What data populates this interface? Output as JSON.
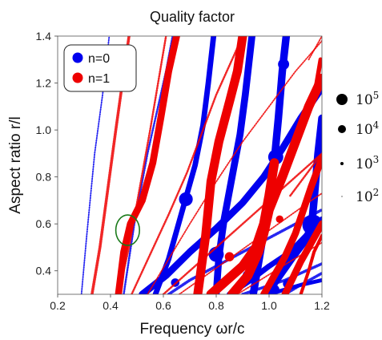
{
  "chart_data": {
    "type": "scatter",
    "title": "Quality factor",
    "xlabel": "Frequency ωr/c",
    "ylabel": "Aspect ratio r/l",
    "xlim": [
      0.2,
      1.2
    ],
    "ylim": [
      0.3,
      1.4
    ],
    "xticks": [
      "0.2",
      "0.4",
      "0.6",
      "0.8",
      "1.0",
      "1.2"
    ],
    "xtick_values": [
      0.2,
      0.4,
      0.6,
      0.8,
      1.0,
      1.2
    ],
    "yticks": [
      "0.4",
      "0.6",
      "0.8",
      "1.0",
      "1.2",
      "1.4"
    ],
    "ytick_values": [
      0.4,
      0.6,
      0.8,
      1.0,
      1.2,
      1.4
    ],
    "grid": false,
    "legend": {
      "placement": "top-left",
      "entries": [
        {
          "label": "n=0",
          "color": "#0000ee"
        },
        {
          "label": "n=1",
          "color": "#ee0000"
        }
      ]
    },
    "size_legend": {
      "placement": "right",
      "entries": [
        {
          "base": "10",
          "exp": "5",
          "q": 100000
        },
        {
          "base": "10",
          "exp": "4",
          "q": 10000
        },
        {
          "base": "10",
          "exp": "3",
          "q": 1000
        },
        {
          "base": "10",
          "exp": "2",
          "q": 100
        }
      ]
    },
    "annotation": {
      "type": "ellipse",
      "x": 0.465,
      "y": 0.573,
      "rx": 0.045,
      "ry": 0.065,
      "color": "#1a7a1a"
    },
    "series": [
      {
        "name": "n=0",
        "color": "#0000ee",
        "branches": [
          {
            "q": 200,
            "points": [
              [
                0.29,
                0.3
              ],
              [
                0.31,
                0.55
              ],
              [
                0.34,
                0.9
              ],
              [
                0.37,
                1.15
              ],
              [
                0.395,
                1.4
              ]
            ]
          },
          {
            "q": 300,
            "points": [
              [
                0.45,
                0.3
              ],
              [
                0.49,
                0.6
              ],
              [
                0.54,
                0.9
              ],
              [
                0.58,
                1.1
              ],
              [
                0.61,
                1.25
              ],
              [
                0.635,
                1.4
              ]
            ]
          },
          {
            "q": 1500,
            "points": [
              [
                0.57,
                0.3
              ],
              [
                0.62,
                0.45
              ],
              [
                0.68,
                0.69
              ],
              [
                0.72,
                0.85
              ],
              [
                0.75,
                1.02
              ],
              [
                0.77,
                1.2
              ],
              [
                0.79,
                1.4
              ]
            ]
          },
          {
            "q": 2500,
            "points": [
              [
                0.52,
                0.3
              ],
              [
                0.61,
                0.38
              ],
              [
                0.7,
                0.48
              ],
              [
                0.8,
                0.58
              ],
              [
                0.9,
                0.69
              ],
              [
                0.98,
                0.8
              ],
              [
                1.05,
                0.92
              ],
              [
                1.12,
                1.05
              ],
              [
                1.2,
                1.18
              ]
            ]
          },
          {
            "q": 2500,
            "points": [
              [
                0.8,
                0.3
              ],
              [
                0.81,
                0.46
              ],
              [
                0.83,
                0.62
              ],
              [
                0.86,
                0.8
              ],
              [
                0.89,
                0.98
              ],
              [
                0.91,
                1.15
              ],
              [
                0.935,
                1.4
              ]
            ]
          },
          {
            "q": 3000,
            "points": [
              [
                0.94,
                0.3
              ],
              [
                0.97,
                0.5
              ],
              [
                1.0,
                0.72
              ],
              [
                1.02,
                0.87
              ],
              [
                1.035,
                1.05
              ],
              [
                1.05,
                1.25
              ],
              [
                1.065,
                1.4
              ]
            ]
          },
          {
            "q": 1500,
            "points": [
              [
                0.85,
                0.3
              ],
              [
                0.93,
                0.36
              ],
              [
                1.0,
                0.42
              ],
              [
                1.08,
                0.48
              ],
              [
                1.14,
                0.55
              ],
              [
                1.2,
                0.62
              ]
            ]
          },
          {
            "q": 3000,
            "points": [
              [
                0.99,
                0.3
              ],
              [
                1.04,
                0.38
              ],
              [
                1.09,
                0.46
              ],
              [
                1.13,
                0.52
              ],
              [
                1.16,
                0.58
              ],
              [
                1.17,
                0.7
              ],
              [
                1.185,
                0.9
              ],
              [
                1.2,
                1.05
              ]
            ]
          },
          {
            "q": 500,
            "points": [
              [
                0.62,
                0.3
              ],
              [
                0.7,
                0.36
              ],
              [
                0.8,
                0.42
              ],
              [
                0.9,
                0.48
              ],
              [
                1.0,
                0.54
              ],
              [
                1.1,
                0.6
              ],
              [
                1.2,
                0.66
              ]
            ]
          },
          {
            "q": 500,
            "points": [
              [
                0.9,
                0.3
              ],
              [
                0.98,
                0.33
              ],
              [
                1.06,
                0.36
              ],
              [
                1.14,
                0.4
              ],
              [
                1.2,
                0.43
              ]
            ]
          },
          {
            "q": 500,
            "points": [
              [
                1.06,
                0.3
              ],
              [
                1.12,
                0.34
              ],
              [
                1.2,
                0.39
              ]
            ]
          },
          {
            "q": 800,
            "points": [
              [
                1.0,
                0.3
              ],
              [
                1.06,
                0.32
              ],
              [
                1.12,
                0.34
              ],
              [
                1.2,
                0.36
              ]
            ]
          }
        ],
        "points": [
          {
            "x": 0.685,
            "y": 0.705,
            "q": 15000
          },
          {
            "x": 0.8,
            "y": 0.47,
            "q": 20000
          },
          {
            "x": 1.025,
            "y": 0.885,
            "q": 20000
          },
          {
            "x": 1.165,
            "y": 0.595,
            "q": 60000
          },
          {
            "x": 1.055,
            "y": 1.28,
            "q": 8000
          },
          {
            "x": 0.92,
            "y": 0.38,
            "q": 7000
          },
          {
            "x": 1.02,
            "y": 0.32,
            "q": 6000
          },
          {
            "x": 1.07,
            "y": 0.345,
            "q": 5000
          },
          {
            "x": 0.645,
            "y": 0.35,
            "q": 4000
          }
        ]
      },
      {
        "name": "n=1",
        "color": "#ee0000",
        "branches": [
          {
            "q": 500,
            "points": [
              [
                0.33,
                0.3
              ],
              [
                0.36,
                0.5
              ],
              [
                0.39,
                0.75
              ],
              [
                0.42,
                1.0
              ],
              [
                0.445,
                1.2
              ],
              [
                0.47,
                1.4
              ]
            ]
          },
          {
            "q": 300,
            "points": [
              [
                0.43,
                0.3
              ],
              [
                0.47,
                0.5
              ],
              [
                0.51,
                0.75
              ],
              [
                0.55,
                1.0
              ],
              [
                0.58,
                1.2
              ],
              [
                0.61,
                1.4
              ]
            ]
          },
          {
            "q": 2500,
            "points": [
              [
                0.43,
                0.3
              ],
              [
                0.45,
                0.48
              ],
              [
                0.475,
                0.6
              ],
              [
                0.52,
                0.7
              ],
              [
                0.56,
                0.86
              ],
              [
                0.59,
                1.05
              ],
              [
                0.62,
                1.25
              ],
              [
                0.65,
                1.4
              ]
            ]
          },
          {
            "q": 300,
            "points": [
              [
                0.48,
                0.3
              ],
              [
                0.55,
                0.47
              ],
              [
                0.62,
                0.64
              ],
              [
                0.69,
                0.82
              ],
              [
                0.75,
                1.0
              ],
              [
                0.8,
                1.15
              ],
              [
                0.86,
                1.3
              ],
              [
                0.9,
                1.4
              ]
            ]
          },
          {
            "q": 200,
            "points": [
              [
                0.54,
                0.3
              ],
              [
                0.62,
                0.45
              ],
              [
                0.7,
                0.6
              ],
              [
                0.8,
                0.78
              ],
              [
                0.9,
                0.95
              ],
              [
                1.0,
                1.1
              ],
              [
                1.1,
                1.25
              ],
              [
                1.2,
                1.38
              ]
            ]
          },
          {
            "q": 4500,
            "points": [
              [
                0.73,
                0.3
              ],
              [
                0.76,
                0.55
              ],
              [
                0.78,
                0.78
              ],
              [
                0.81,
                0.95
              ],
              [
                0.85,
                1.12
              ],
              [
                0.88,
                1.25
              ],
              [
                0.9,
                1.4
              ]
            ]
          },
          {
            "q": 300,
            "points": [
              [
                0.6,
                0.3
              ],
              [
                0.7,
                0.4
              ],
              [
                0.8,
                0.5
              ],
              [
                0.9,
                0.6
              ],
              [
                1.0,
                0.7
              ],
              [
                1.1,
                0.8
              ],
              [
                1.2,
                0.9
              ]
            ]
          },
          {
            "q": 200,
            "points": [
              [
                0.66,
                0.3
              ],
              [
                0.76,
                0.38
              ],
              [
                0.86,
                0.46
              ],
              [
                0.96,
                0.54
              ],
              [
                1.06,
                0.62
              ],
              [
                1.16,
                0.7
              ],
              [
                1.2,
                0.73
              ]
            ]
          },
          {
            "q": 5000,
            "points": [
              [
                0.78,
                0.3
              ],
              [
                0.84,
                0.36
              ],
              [
                0.9,
                0.42
              ],
              [
                0.95,
                0.5
              ],
              [
                0.98,
                0.6
              ],
              [
                1.0,
                0.72
              ],
              [
                1.02,
                0.86
              ]
            ]
          },
          {
            "q": 5000,
            "points": [
              [
                0.86,
                0.3
              ],
              [
                0.92,
                0.38
              ],
              [
                0.96,
                0.48
              ],
              [
                0.98,
                0.56
              ],
              [
                1.0,
                0.66
              ],
              [
                1.05,
                0.8
              ],
              [
                1.1,
                0.95
              ],
              [
                1.15,
                1.1
              ],
              [
                1.2,
                1.22
              ]
            ]
          },
          {
            "q": 2500,
            "points": [
              [
                0.98,
                0.3
              ],
              [
                1.02,
                0.38
              ],
              [
                1.06,
                0.46
              ],
              [
                1.1,
                0.56
              ],
              [
                1.13,
                0.66
              ],
              [
                1.16,
                0.76
              ],
              [
                1.2,
                0.88
              ]
            ]
          },
          {
            "q": 2500,
            "points": [
              [
                1.06,
                0.3
              ],
              [
                1.09,
                0.37
              ],
              [
                1.12,
                0.44
              ],
              [
                1.15,
                0.5
              ],
              [
                1.18,
                0.56
              ],
              [
                1.2,
                0.6
              ]
            ]
          },
          {
            "q": 600,
            "points": [
              [
                1.12,
                0.3
              ],
              [
                1.15,
                0.4
              ],
              [
                1.17,
                0.48
              ],
              [
                1.2,
                0.55
              ]
            ]
          },
          {
            "q": 200,
            "points": [
              [
                0.88,
                0.3
              ],
              [
                0.98,
                0.37
              ],
              [
                1.08,
                0.44
              ],
              [
                1.2,
                0.52
              ]
            ]
          },
          {
            "q": 1000,
            "points": [
              [
                1.16,
                1.1
              ],
              [
                1.18,
                1.2
              ],
              [
                1.195,
                1.3
              ]
            ]
          },
          {
            "q": 300,
            "points": [
              [
                1.08,
                0.72
              ],
              [
                1.12,
                0.78
              ],
              [
                1.16,
                0.84
              ],
              [
                1.2,
                0.9
              ]
            ]
          },
          {
            "q": 200,
            "points": [
              [
                1.15,
                1.3
              ],
              [
                1.18,
                1.36
              ],
              [
                1.2,
                1.4
              ]
            ]
          }
        ],
        "points": [
          {
            "x": 0.85,
            "y": 0.46,
            "q": 5000
          },
          {
            "x": 0.97,
            "y": 0.58,
            "q": 2000
          },
          {
            "x": 1.04,
            "y": 0.62,
            "q": 3000
          }
        ]
      }
    ]
  }
}
